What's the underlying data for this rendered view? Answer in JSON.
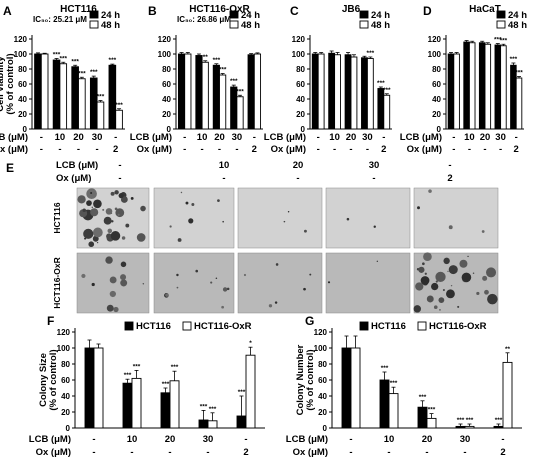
{
  "chart_data": [
    {
      "panel": "A",
      "type": "bar",
      "title": "HCT116",
      "ic50": "IC₅₀: 25.21 μM",
      "ylabel": "Cell viability (% of control)",
      "ylim": [
        0,
        120
      ],
      "yticks": [
        0,
        20,
        40,
        60,
        80,
        100,
        120
      ],
      "legend": [
        "24 h",
        "48 h"
      ],
      "legend_placement": "top-right",
      "treatments": {
        "LCB (μM)": [
          "-",
          "10",
          "20",
          "30",
          "-"
        ],
        "Ox (μM)": [
          "-",
          "-",
          "-",
          "-",
          "2"
        ]
      },
      "series": [
        {
          "name": "24 h",
          "values": [
            100,
            92,
            83,
            68,
            85
          ],
          "errors": [
            1.5,
            2,
            2,
            2.5,
            1.5
          ],
          "sig": [
            "",
            "***",
            "***",
            "***",
            "***"
          ]
        },
        {
          "name": "48 h",
          "values": [
            100,
            87,
            67,
            36,
            25
          ],
          "errors": [
            1,
            2,
            2,
            2,
            2
          ],
          "sig": [
            "",
            "***",
            "***",
            "***",
            "***"
          ]
        }
      ]
    },
    {
      "panel": "B",
      "type": "bar",
      "title": "HCT116-OxR",
      "ic50": "IC₅₀: 26.86 μM",
      "ylim": [
        0,
        120
      ],
      "yticks": [
        0,
        20,
        40,
        60,
        80,
        100,
        120
      ],
      "legend": [
        "24 h",
        "48 h"
      ],
      "legend_placement": "top-right",
      "treatments": {
        "LCB (μM)": [
          "-",
          "10",
          "20",
          "30",
          "-"
        ],
        "Ox (μM)": [
          "-",
          "-",
          "-",
          "-",
          "2"
        ]
      },
      "series": [
        {
          "name": "24 h",
          "values": [
            100,
            98,
            85,
            56,
            99
          ],
          "errors": [
            2,
            2,
            2,
            2.5,
            1.5
          ],
          "sig": [
            "",
            "",
            "***",
            "***",
            ""
          ]
        },
        {
          "name": "48 h",
          "values": [
            100,
            89,
            72,
            43,
            100
          ],
          "errors": [
            2,
            2,
            2,
            2,
            1.5
          ],
          "sig": [
            "",
            "**",
            "***",
            "***",
            ""
          ]
        }
      ]
    },
    {
      "panel": "C",
      "type": "bar",
      "title": "JB6",
      "ylim": [
        0,
        120
      ],
      "yticks": [
        0,
        20,
        40,
        60,
        80,
        100,
        120
      ],
      "legend": [
        "24 h",
        "48 h"
      ],
      "legend_placement": "top-right",
      "treatments": {
        "LCB (μM)": [
          "-",
          "10",
          "20",
          "30",
          "-"
        ],
        "Ox (μM)": [
          "-",
          "-",
          "-",
          "-",
          "2"
        ]
      },
      "series": [
        {
          "name": "24 h",
          "values": [
            100,
            101,
            99,
            95,
            54
          ],
          "errors": [
            2,
            3,
            3,
            2,
            2
          ],
          "sig": [
            "",
            "",
            "",
            "",
            "***"
          ]
        },
        {
          "name": "48 h",
          "values": [
            100,
            99,
            96,
            94,
            45
          ],
          "errors": [
            2,
            3,
            3,
            2,
            2
          ],
          "sig": [
            "",
            "",
            "",
            "***",
            "***"
          ]
        }
      ]
    },
    {
      "panel": "D",
      "type": "bar",
      "title": "HaCaT",
      "ylim": [
        0,
        120
      ],
      "yticks": [
        0,
        20,
        40,
        60,
        80,
        100,
        120
      ],
      "legend": [
        "24 h",
        "48 h"
      ],
      "legend_placement": "top-right",
      "treatments": {
        "LCB (μM)": [
          "-",
          "10",
          "20",
          "30",
          "-"
        ],
        "Ox (μM)": [
          "-",
          "-",
          "-",
          "-",
          "2"
        ]
      },
      "series": [
        {
          "name": "24 h",
          "values": [
            100,
            116,
            115,
            112,
            85
          ],
          "errors": [
            2,
            2,
            2,
            2,
            3
          ],
          "sig": [
            "",
            "",
            "",
            "***",
            "***"
          ]
        },
        {
          "name": "48 h",
          "values": [
            100,
            115,
            113,
            111,
            68
          ],
          "errors": [
            2,
            2,
            2,
            2,
            2
          ],
          "sig": [
            "",
            "",
            "",
            "***",
            "***"
          ]
        }
      ]
    },
    {
      "panel": "F",
      "type": "bar",
      "ylabel": "Colony Size (% of control)",
      "ylim": [
        0,
        120
      ],
      "yticks": [
        0,
        20,
        40,
        60,
        80,
        100,
        120
      ],
      "legend": [
        "HCT116",
        "HCT116-OxR"
      ],
      "legend_placement": "top",
      "treatments": {
        "LCB (μM)": [
          "-",
          "10",
          "20",
          "30",
          "-"
        ],
        "Ox (μM)": [
          "-",
          "-",
          "-",
          "-",
          "2"
        ]
      },
      "series": [
        {
          "name": "HCT116",
          "values": [
            100,
            56,
            44,
            10,
            15
          ],
          "errors": [
            10,
            5,
            6,
            12,
            25
          ],
          "sig": [
            "",
            "***",
            "***",
            "***",
            "***"
          ]
        },
        {
          "name": "HCT116-OxR",
          "values": [
            100,
            62,
            59,
            9,
            91
          ],
          "errors": [
            5,
            10,
            12,
            10,
            10
          ],
          "sig": [
            "",
            "***",
            "***",
            "***",
            "*"
          ]
        }
      ]
    },
    {
      "panel": "G",
      "type": "bar",
      "ylabel": "Colony Number (% of control)",
      "ylim": [
        0,
        120
      ],
      "yticks": [
        0,
        20,
        40,
        60,
        80,
        100,
        120
      ],
      "legend": [
        "HCT116",
        "HCT116-OxR"
      ],
      "legend_placement": "top",
      "treatments": {
        "LCB (μM)": [
          "-",
          "10",
          "20",
          "30",
          "-"
        ],
        "Ox (μM)": [
          "-",
          "-",
          "-",
          "-",
          "2"
        ]
      },
      "series": [
        {
          "name": "HCT116",
          "values": [
            100,
            60,
            26,
            2,
            2
          ],
          "errors": [
            15,
            10,
            8,
            3,
            3
          ],
          "sig": [
            "",
            "***",
            "***",
            "***",
            "***"
          ]
        },
        {
          "name": "HCT116-OxR",
          "values": [
            100,
            43,
            12,
            2,
            82
          ],
          "errors": [
            15,
            8,
            6,
            3,
            12
          ],
          "sig": [
            "",
            "***",
            "***",
            "***",
            "**"
          ]
        }
      ]
    }
  ],
  "panel_e": {
    "label": "E",
    "lcb_label": "LCB (μM)",
    "ox_label": "Ox (μM)",
    "lcb_values": [
      "-",
      "10",
      "20",
      "30",
      "-"
    ],
    "ox_values": [
      "-",
      "-",
      "-",
      "-",
      "2"
    ],
    "rows": [
      "HCT116",
      "HCT116-OxR"
    ]
  },
  "colors": {
    "black": "#000000",
    "white": "#ffffff",
    "plate_gray": "#c8c8c8"
  }
}
